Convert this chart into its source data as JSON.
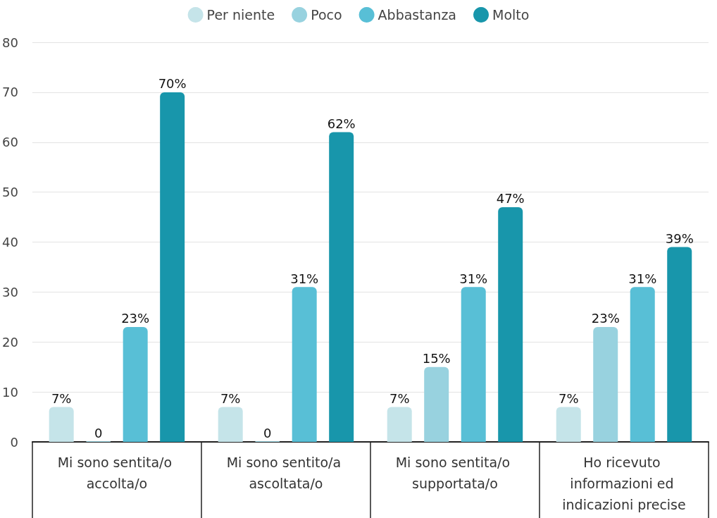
{
  "chart_data": {
    "type": "bar",
    "categories": [
      "Mi sono sentita/o accolta/o",
      "Mi sono sentito/a ascoltata/o",
      "Mi sono sentita/o supportata/o",
      "Ho ricevuto informazioni ed indicazioni precise"
    ],
    "series": [
      {
        "name": "Per niente",
        "color": "#c5e4e9",
        "values": [
          7,
          7,
          7,
          7
        ],
        "value_labels": [
          "7%",
          "7%",
          "7%",
          "7%"
        ]
      },
      {
        "name": "Poco",
        "color": "#98d2df",
        "values": [
          0,
          0,
          15,
          23
        ],
        "value_labels": [
          "0",
          "0",
          "15%",
          "23%"
        ]
      },
      {
        "name": "Abbastanza",
        "color": "#58bfd6",
        "values": [
          23,
          31,
          31,
          31
        ],
        "value_labels": [
          "23%",
          "31%",
          "31%",
          "31%"
        ]
      },
      {
        "name": "Molto",
        "color": "#1896ab",
        "values": [
          70,
          62,
          47,
          39
        ],
        "value_labels": [
          "70%",
          "62%",
          "47%",
          "39%"
        ]
      }
    ],
    "ylim": [
      0,
      80
    ],
    "yticks": [
      0,
      10,
      20,
      30,
      40,
      50,
      60,
      70,
      80
    ],
    "grid": "y",
    "legend": "top"
  }
}
